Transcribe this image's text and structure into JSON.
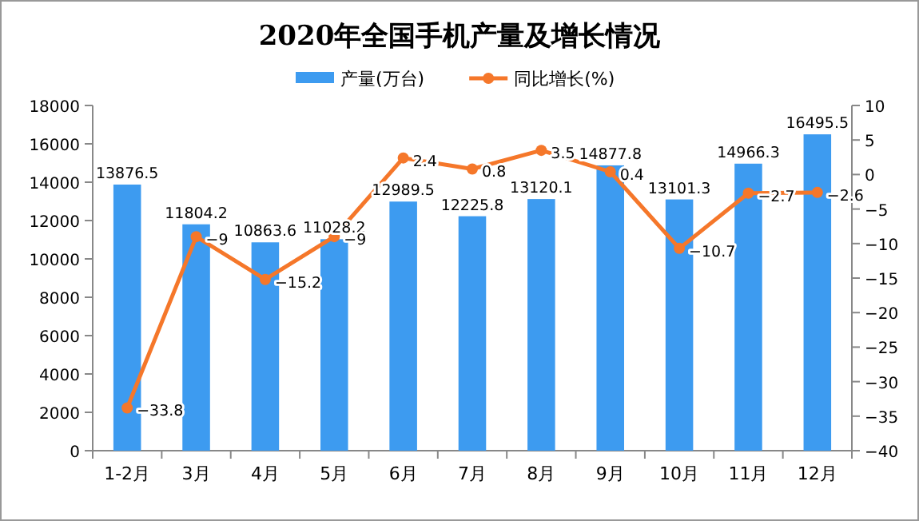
{
  "chart_data": {
    "type": "bar",
    "title": "2020年全国手机产量及增长情况",
    "categories": [
      "1-2月",
      "3月",
      "4月",
      "5月",
      "6月",
      "7月",
      "8月",
      "9月",
      "10月",
      "11月",
      "12月"
    ],
    "series": [
      {
        "name": "产量(万台)",
        "color": "#3d9bf0",
        "values": [
          13876.5,
          11804.2,
          10863.6,
          11028.2,
          12989.5,
          12225.8,
          13120.1,
          14877.8,
          13101.3,
          14966.3,
          16495.5
        ]
      },
      {
        "name": "同比增长(%)",
        "type": "line",
        "axis": "y2",
        "color": "#f5772a",
        "marker": "circle",
        "values": [
          -33.8,
          -9,
          -15.2,
          -9,
          2.4,
          0.8,
          3.5,
          0.4,
          -10.7,
          -2.7,
          -2.6
        ]
      }
    ],
    "ylim": [
      0,
      18000
    ],
    "yticks": [
      0,
      2000,
      4000,
      6000,
      8000,
      10000,
      12000,
      14000,
      16000,
      18000
    ],
    "y2lim": [
      -40,
      10
    ],
    "y2ticks": [
      -40,
      -35,
      -30,
      -25,
      -20,
      -15,
      -10,
      -5,
      0,
      5,
      10
    ],
    "data_labels": true,
    "legend": "top",
    "grid": false
  }
}
